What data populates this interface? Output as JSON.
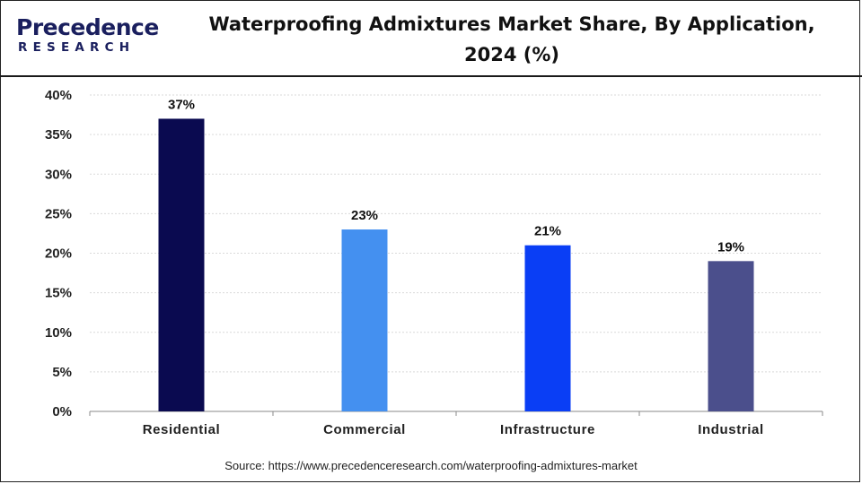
{
  "brand": {
    "name": "Precedence",
    "sub": "RESEARCH"
  },
  "header": {
    "title_line1": "Waterproofing Admixtures Market Share, By Application,",
    "title_line2": "2024 (%)"
  },
  "source": "Source: https://www.precedenceresearch.com/waterproofing-admixtures-market",
  "chart_data": {
    "type": "bar",
    "title": "Waterproofing Admixtures Market Share, By Application, 2024 (%)",
    "xlabel": "",
    "ylabel": "",
    "categories": [
      "Residential",
      "Commercial",
      "Infrastructure",
      "Industrial"
    ],
    "values": [
      37,
      23,
      21,
      19
    ],
    "value_labels": [
      "37%",
      "23%",
      "21%",
      "19%"
    ],
    "colors": [
      "#0a0a50",
      "#4490f0",
      "#0a3ef5",
      "#4b4f8c"
    ],
    "ylim": [
      0,
      40
    ],
    "yticks": [
      0,
      5,
      10,
      15,
      20,
      25,
      30,
      35,
      40
    ],
    "ytick_labels": [
      "0%",
      "5%",
      "10%",
      "15%",
      "20%",
      "25%",
      "30%",
      "35%",
      "40%"
    ],
    "grid": true
  }
}
